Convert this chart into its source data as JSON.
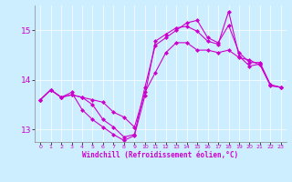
{
  "xlabel": "Windchill (Refroidissement éolien,°C)",
  "bg_color": "#cceeff",
  "line_color": "#cc00cc",
  "xlim": [
    -0.5,
    23.5
  ],
  "ylim": [
    12.75,
    15.5
  ],
  "yticks": [
    13,
    14,
    15
  ],
  "xticks": [
    0,
    1,
    2,
    3,
    4,
    5,
    6,
    7,
    8,
    9,
    10,
    11,
    12,
    13,
    14,
    15,
    16,
    17,
    18,
    19,
    20,
    21,
    22,
    23
  ],
  "series": [
    [
      13.6,
      13.8,
      13.65,
      13.7,
      13.65,
      13.6,
      13.55,
      13.35,
      13.25,
      13.05,
      13.75,
      14.15,
      14.55,
      14.75,
      14.75,
      14.6,
      14.6,
      14.55,
      14.6,
      14.45,
      14.4,
      14.3,
      13.9,
      13.85
    ],
    [
      13.6,
      13.8,
      13.65,
      13.7,
      13.65,
      13.5,
      13.2,
      13.05,
      12.85,
      12.9,
      13.85,
      14.7,
      14.85,
      15.0,
      15.15,
      15.2,
      14.85,
      14.75,
      15.1,
      14.55,
      14.35,
      14.35,
      13.9,
      13.85
    ],
    [
      13.6,
      13.8,
      13.65,
      13.75,
      13.4,
      13.2,
      13.05,
      12.9,
      12.78,
      12.88,
      13.68,
      14.78,
      14.92,
      15.05,
      15.08,
      14.98,
      14.78,
      14.72,
      15.38,
      14.48,
      14.28,
      14.32,
      13.88,
      13.85
    ]
  ]
}
